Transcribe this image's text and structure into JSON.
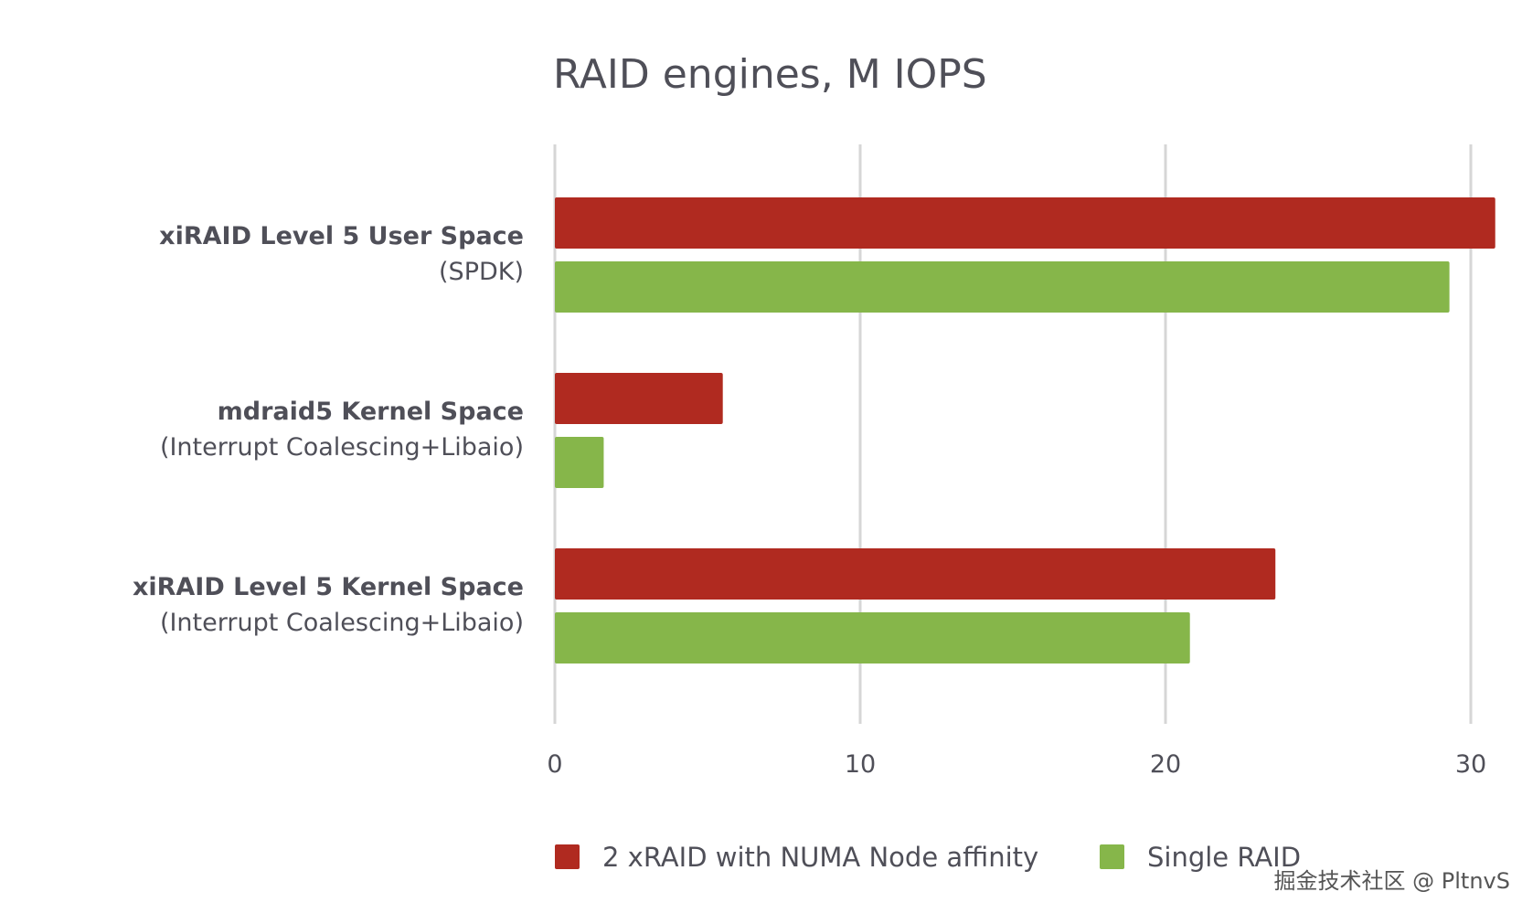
{
  "chart_data": {
    "type": "bar",
    "orientation": "horizontal",
    "title": "RAID engines, M IOPS",
    "categories": [
      {
        "main": "xiRAID Level 5 User Space",
        "sub": "(SPDK)"
      },
      {
        "main": "mdraid5 Kernel Space",
        "sub": "(Interrupt Coalescing+Libaio)"
      },
      {
        "main": "xiRAID Level 5 Kernel Space",
        "sub": "(Interrupt Coalescing+Libaio)"
      }
    ],
    "series": [
      {
        "name": "2 xRAID with NUMA Node affinity",
        "color": "#b02a20",
        "values": [
          30.8,
          5.5,
          23.6
        ]
      },
      {
        "name": "Single RAID",
        "color": "#86b64a",
        "values": [
          29.3,
          1.6,
          20.8
        ]
      }
    ],
    "xlim": [
      0,
      30
    ],
    "xticks": [
      "0",
      "10",
      "20",
      "30"
    ],
    "grid": true,
    "legend_position": "bottom"
  },
  "watermark": "掘金技术社区 @ PltnvS"
}
